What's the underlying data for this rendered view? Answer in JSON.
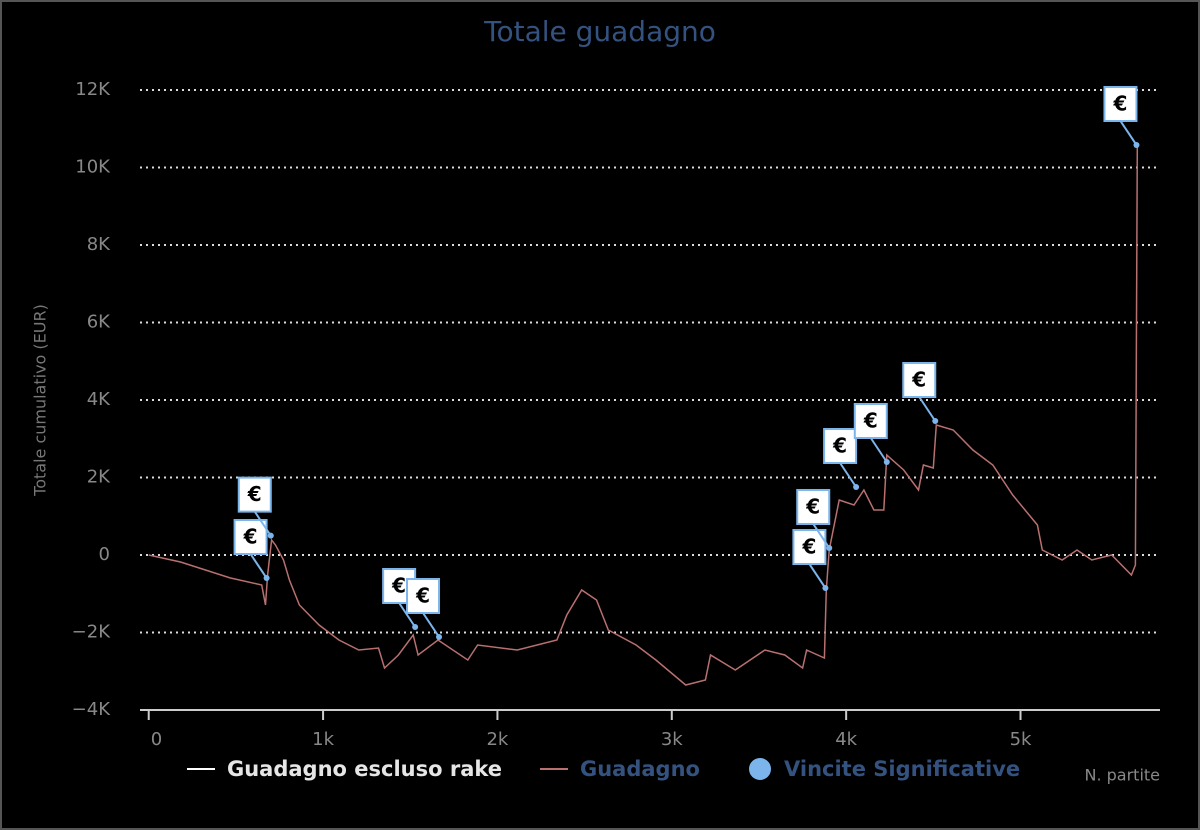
{
  "chart_data": {
    "type": "line",
    "title": "Totale guadagno",
    "y_label": "Totale cumulativo (EUR)",
    "x_label": "N. partite",
    "xlim": [
      -50,
      5800
    ],
    "ylim": [
      -4000,
      12000
    ],
    "xticks": [
      0,
      {
        "value": 1000,
        "label": "1k"
      },
      {
        "value": 2000,
        "label": "2k"
      },
      {
        "value": 3000,
        "label": "3k"
      },
      {
        "value": 4000,
        "label": "4k"
      },
      {
        "value": 5000,
        "label": "5k"
      }
    ],
    "yticks": [
      {
        "value": -4000,
        "label": "−4K"
      },
      {
        "value": -2000,
        "label": "−2K"
      },
      0,
      {
        "value": 2000,
        "label": "2K"
      },
      {
        "value": 4000,
        "label": "4K"
      },
      {
        "value": 6000,
        "label": "6K"
      },
      {
        "value": 8000,
        "label": "8K"
      },
      {
        "value": 10000,
        "label": "10K"
      },
      {
        "value": 12000,
        "label": "12K"
      }
    ],
    "grid": true,
    "marker_label": "€",
    "series": [
      {
        "name": "Guadagno escluso rake",
        "color": "#ffffff",
        "visible": false
      },
      {
        "name": "Guadagno",
        "color": "#b87070",
        "x": [
          0,
          182,
          466,
          648,
          670,
          682,
          705,
          727,
          773,
          807,
          864,
          977,
          1091,
          1205,
          1318,
          1352,
          1432,
          1517,
          1545,
          1659,
          1830,
          1886,
          2114,
          2341,
          2398,
          2483,
          2568,
          2636,
          2795,
          2909,
          3080,
          3193,
          3222,
          3364,
          3534,
          3648,
          3750,
          3773,
          3875,
          3886,
          3903,
          3960,
          4045,
          4102,
          4159,
          4216,
          4233,
          4330,
          4415,
          4443,
          4500,
          4517,
          4614,
          4727,
          4841,
          4955,
          5097,
          5125,
          5239,
          5324,
          5409,
          5523,
          5636,
          5659,
          5670
        ],
        "values": [
          0,
          -180,
          -590,
          -775,
          -1290,
          -516,
          387,
          258,
          -129,
          -645,
          -1290,
          -1806,
          -2194,
          -2452,
          -2400,
          -2916,
          -2581,
          -2065,
          -2581,
          -2194,
          -2710,
          -2323,
          -2452,
          -2194,
          -1548,
          -903,
          -1161,
          -1935,
          -2323,
          -2710,
          -3355,
          -3226,
          -2581,
          -2968,
          -2452,
          -2581,
          -2916,
          -2452,
          -2658,
          -903,
          129,
          1419,
          1290,
          1677,
          1161,
          1161,
          2581,
          2194,
          1677,
          2323,
          2245,
          3355,
          3226,
          2710,
          2323,
          1548,
          774,
          129,
          -129,
          129,
          -129,
          0,
          -516,
          -258,
          10581
        ]
      },
      {
        "name": "Vincite Significative",
        "color": "#7cb5ec",
        "kind": "scatter",
        "x": [
          676,
          700,
          1528,
          1665,
          3881,
          3903,
          4057,
          4233,
          4511,
          5665
        ],
        "values": [
          -594,
          500,
          -1858,
          -2116,
          -852,
          181,
          1755,
          2400,
          3458,
          10581
        ]
      }
    ]
  }
}
